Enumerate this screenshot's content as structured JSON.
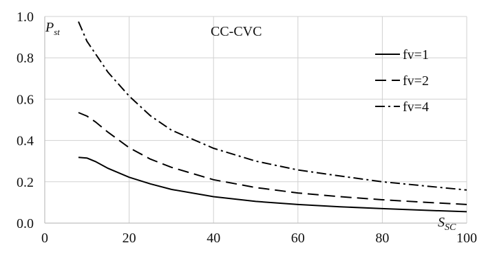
{
  "chart_data": {
    "type": "line",
    "title": "CC-CVC",
    "ylabel": "P",
    "ylabel_sub": "st",
    "xlabel": "S",
    "xlabel_sub": "SC",
    "xlim": [
      0,
      100
    ],
    "ylim": [
      0,
      1.0
    ],
    "xticks": [
      "0",
      "20",
      "40",
      "60",
      "80",
      "100"
    ],
    "yticks": [
      "0.0",
      "0.2",
      "0.4",
      "0.6",
      "0.8",
      "1.0"
    ],
    "grid": true,
    "legend_position": "right",
    "series": [
      {
        "name": "fv=1",
        "dash": "solid",
        "color": "#000000",
        "x": [
          8,
          10,
          12,
          15,
          20,
          25,
          30,
          40,
          50,
          60,
          70,
          80,
          90,
          100
        ],
        "y": [
          0.318,
          0.315,
          0.298,
          0.265,
          0.222,
          0.19,
          0.163,
          0.128,
          0.105,
          0.09,
          0.079,
          0.07,
          0.062,
          0.055
        ]
      },
      {
        "name": "fv=2",
        "dash": "long-dash",
        "color": "#000000",
        "x": [
          8,
          10,
          12,
          15,
          20,
          25,
          30,
          40,
          50,
          60,
          70,
          80,
          90,
          100
        ],
        "y": [
          0.535,
          0.518,
          0.49,
          0.44,
          0.365,
          0.31,
          0.27,
          0.21,
          0.172,
          0.146,
          0.128,
          0.113,
          0.101,
          0.09
        ]
      },
      {
        "name": "fv=4",
        "dash": "dash-dot",
        "color": "#000000",
        "x": [
          8,
          10,
          12,
          15,
          20,
          25,
          30,
          40,
          50,
          60,
          70,
          80,
          90,
          100
        ],
        "y": [
          0.975,
          0.88,
          0.82,
          0.73,
          0.615,
          0.52,
          0.45,
          0.362,
          0.3,
          0.257,
          0.228,
          0.2,
          0.18,
          0.16
        ]
      }
    ]
  }
}
